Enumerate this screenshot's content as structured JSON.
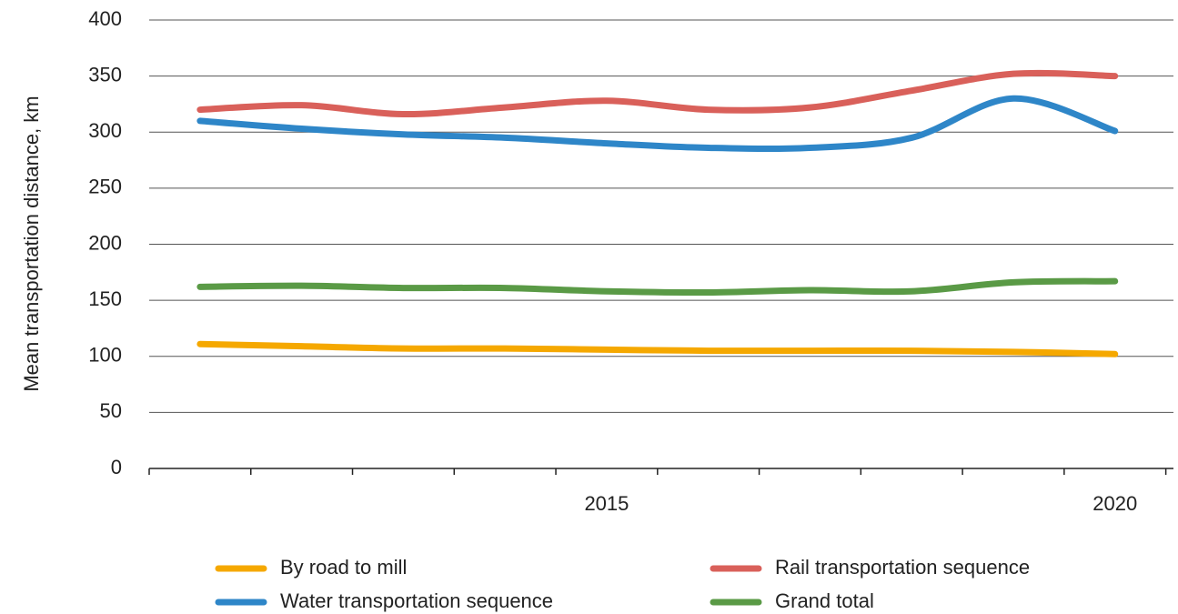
{
  "chart_data": {
    "type": "line",
    "y_label": "Mean transportation distance,  km",
    "categories": [
      null,
      null,
      null,
      null,
      "2015",
      null,
      null,
      null,
      null,
      "2020"
    ],
    "series": [
      {
        "name": "By road to mill",
        "color": "#f5a800",
        "values": [
          111,
          109,
          107,
          107,
          106,
          105,
          105,
          105,
          104,
          102
        ]
      },
      {
        "name": "Rail transportation sequence",
        "color": "#d9605a",
        "values": [
          320,
          324,
          316,
          322,
          328,
          320,
          322,
          337,
          352,
          350
        ]
      },
      {
        "name": "Water transportation sequence",
        "color": "#2e86c8",
        "values": [
          310,
          303,
          298,
          295,
          290,
          286,
          286,
          295,
          330,
          301
        ]
      },
      {
        "name": "Grand total",
        "color": "#5a9a46",
        "values": [
          162,
          163,
          161,
          161,
          158,
          157,
          159,
          158,
          166,
          167
        ]
      }
    ],
    "ylim": [
      0,
      400
    ],
    "yticks": [
      0,
      50,
      100,
      150,
      200,
      250,
      300,
      350,
      400
    ],
    "grid": true
  }
}
